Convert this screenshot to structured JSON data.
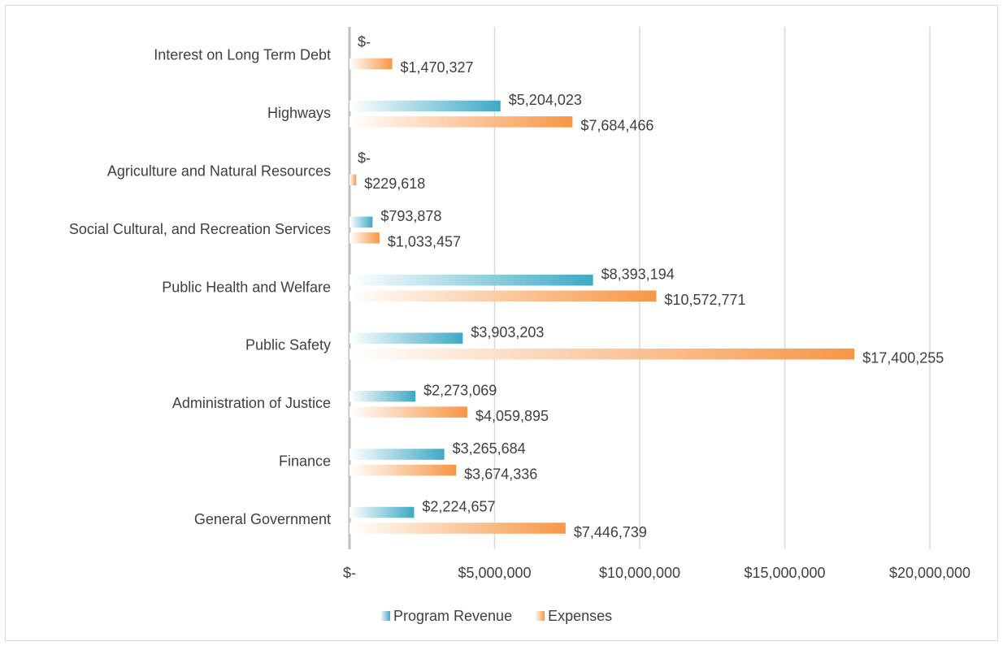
{
  "chart_data": {
    "type": "bar",
    "orientation": "horizontal",
    "categories": [
      "General Government",
      "Finance",
      "Administration of Justice",
      "Public Safety",
      "Public Health and Welfare",
      "Social Cultural, and Recreation Services",
      "Agriculture and Natural Resources",
      "Highways",
      "Interest on Long Term Debt"
    ],
    "series": [
      {
        "name": "Program Revenue",
        "color": "#3fa9c5",
        "values": [
          2224657,
          3265684,
          2273069,
          3903203,
          8393194,
          793878,
          0,
          5204023,
          0
        ],
        "value_labels": [
          "$2,224,657",
          "$3,265,684",
          "$2,273,069",
          "$3,903,203",
          "$8,393,194",
          "$793,878",
          "$-",
          "$5,204,023",
          "$-"
        ]
      },
      {
        "name": "Expenses",
        "color": "#f79646",
        "values": [
          7446739,
          3674336,
          4059895,
          17400255,
          10572771,
          1033457,
          229618,
          7684466,
          1470327
        ],
        "value_labels": [
          "$7,446,739",
          "$3,674,336",
          "$4,059,895",
          "$17,400,255",
          "$10,572,771",
          "$1,033,457",
          "$229,618",
          "$7,684,466",
          "$1,470,327"
        ]
      }
    ],
    "xlim": [
      0,
      20000000
    ],
    "xticks": [
      {
        "value": 0,
        "label": "$-"
      },
      {
        "value": 5000000,
        "label": "$5,000,000"
      },
      {
        "value": 10000000,
        "label": "$10,000,000"
      },
      {
        "value": 15000000,
        "label": "$15,000,000"
      },
      {
        "value": 20000000,
        "label": "$20,000,000"
      }
    ],
    "grid": true,
    "legend": "bottom"
  }
}
